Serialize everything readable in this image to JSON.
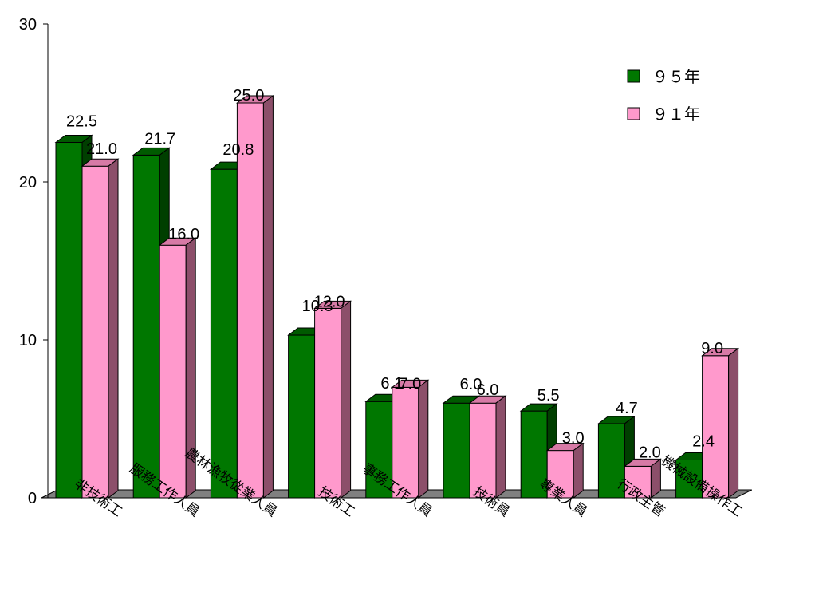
{
  "chart_data": {
    "type": "bar",
    "categories": [
      "非技術工",
      "服務工作人員",
      "農林漁牧從業人員",
      "技術工",
      "事務工作人員",
      "技術員",
      "專業人員",
      "行政主管",
      "機械設備操作工"
    ],
    "series": [
      {
        "name": "９５年",
        "values": [
          22.5,
          21.7,
          20.8,
          10.3,
          6.1,
          6.0,
          5.5,
          4.7,
          2.4
        ],
        "color": "#007700",
        "top_color": "#005a00",
        "side_color": "#003f00"
      },
      {
        "name": "９１年",
        "values": [
          21.0,
          16.0,
          25.0,
          12.0,
          7.0,
          6.0,
          3.0,
          2.0,
          9.0
        ],
        "color": "#ff99cc",
        "top_color": "#d77aa6",
        "side_color": "#8c4f6a"
      }
    ],
    "value_labels": [
      [
        "22.5",
        "21.7",
        "20.8",
        "10.3",
        "6.1",
        "6.0",
        "5.5",
        "4.7",
        "2.4"
      ],
      [
        "21.0",
        "16.0",
        "25.0",
        "12.0",
        "7.0",
        "6.0",
        "3.0",
        "2.0",
        "9.0"
      ]
    ],
    "y_ticks": [
      "0",
      "10",
      "20",
      "30"
    ],
    "ylim": [
      0,
      30
    ],
    "title": "",
    "xlabel": "",
    "ylabel": "",
    "grid": false,
    "legend_position": "top-right",
    "floor_color": "#808080"
  }
}
